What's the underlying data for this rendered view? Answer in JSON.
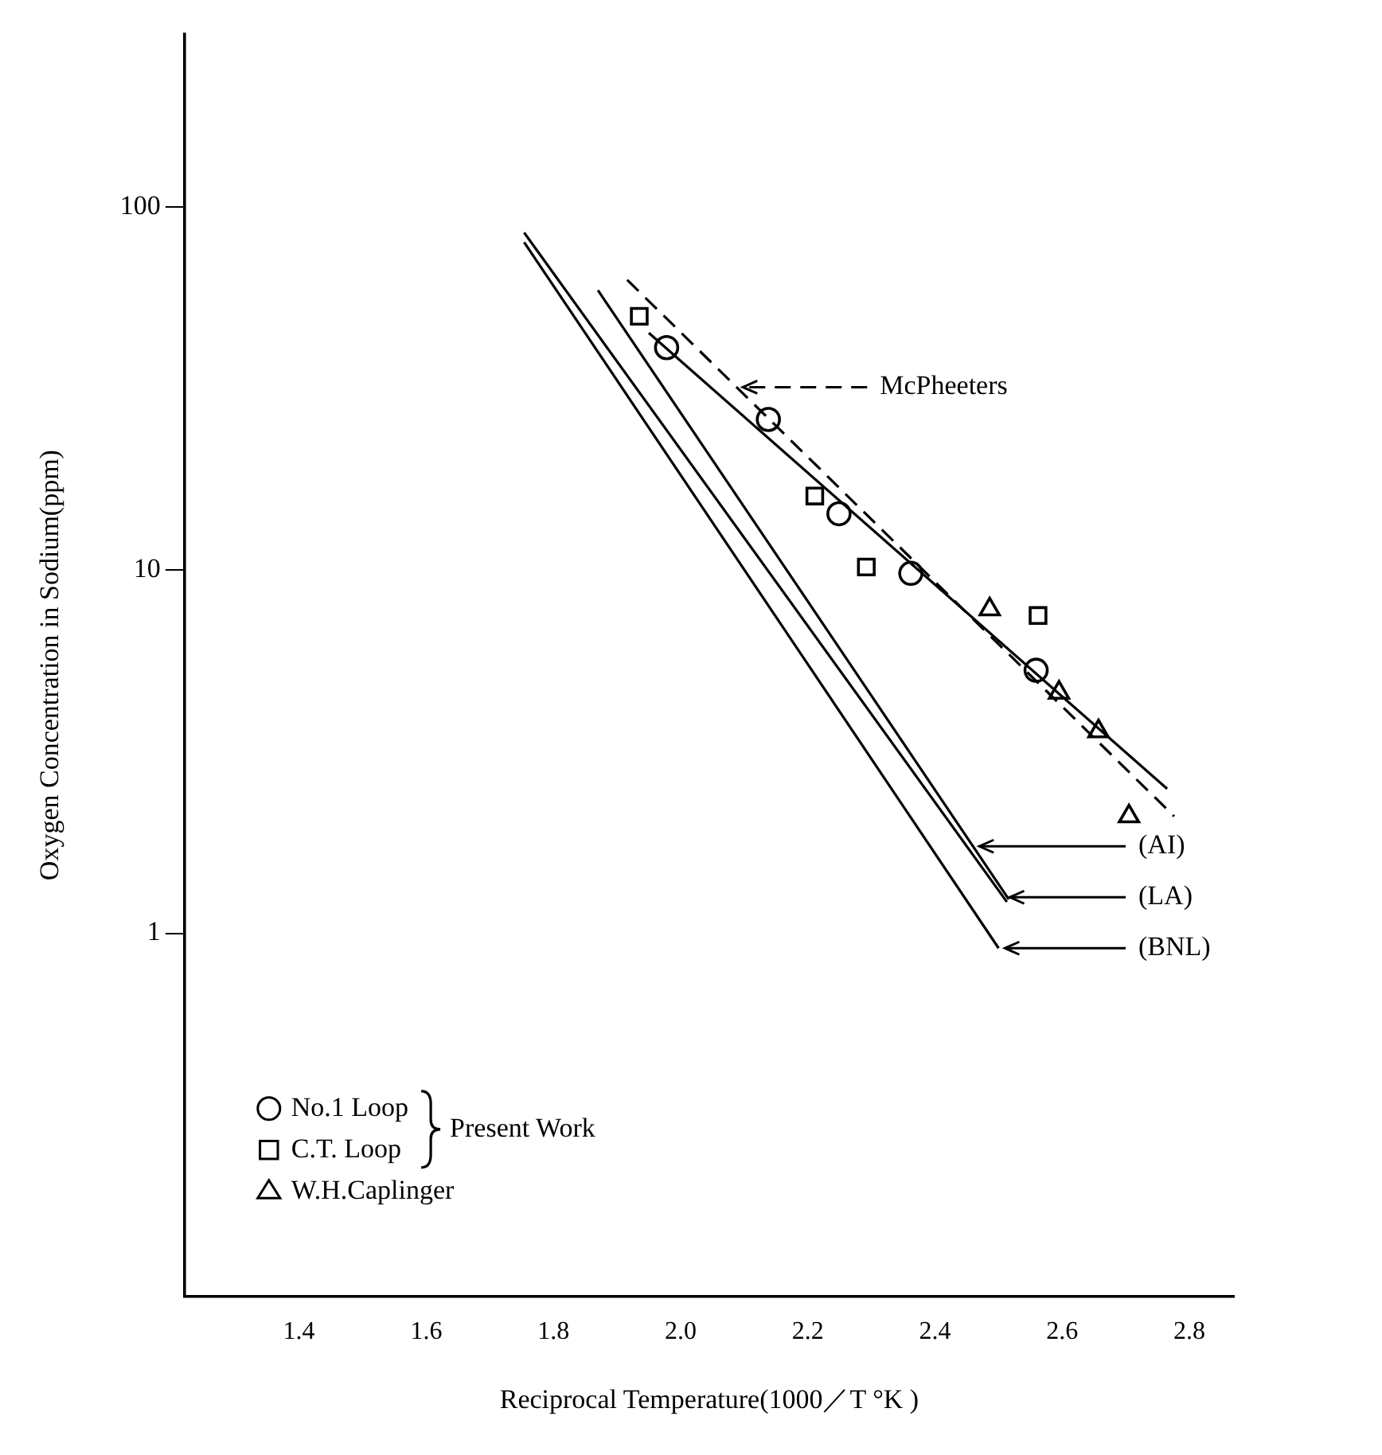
{
  "chart_data": {
    "type": "scatter",
    "xlabel": "Reciprocal Temperature(1000／T °K )",
    "ylabel": "Oxygen Concentration in Sodium(ppm)",
    "log": "y",
    "xlim": [
      1.22,
      2.87
    ],
    "xticks": [
      1.4,
      1.6,
      1.8,
      {
        "value": 2,
        "label": "2.0"
      },
      2.2,
      2.4,
      2.6,
      2.8
    ],
    "ylim": [
      0.1,
      300
    ],
    "yticks": [
      1,
      10,
      100
    ],
    "legend": "bottom left",
    "annotations": [
      "Present Work"
    ],
    "series": [
      {
        "name": "No.1 Loop",
        "marker": "circle",
        "color": "#000000",
        "x": [
          1.978,
          2.138,
          2.249,
          2.362,
          2.559
        ],
        "values": [
          41,
          26,
          14.3,
          9.8,
          5.3
        ]
      },
      {
        "name": "C.T. Loop",
        "marker": "square",
        "color": "#000000",
        "x": [
          1.935,
          2.211,
          2.292,
          2.562
        ],
        "values": [
          50,
          16,
          10.2,
          7.5
        ]
      },
      {
        "name": "W.H.Caplinger",
        "marker": "triangle",
        "color": "#000000",
        "x": [
          2.486,
          2.595,
          2.657,
          2.705
        ],
        "values": [
          7.8,
          4.6,
          3.6,
          2.1
        ]
      },
      {
        "type": "line",
        "marker": "none",
        "line_style": "solid",
        "color": "#000000",
        "x": [
          1.95,
          2.765
        ],
        "values": [
          45,
          2.5
        ]
      },
      {
        "name": "McPheeters",
        "type": "line",
        "marker": "none",
        "line_style": "dashed",
        "color": "#000000",
        "x": [
          1.916,
          2.776
        ],
        "values": [
          63,
          2.1
        ]
      },
      {
        "name": "(AI)",
        "type": "line",
        "marker": "none",
        "line_style": "solid",
        "color": "#000000",
        "x": [
          1.87,
          2.516
        ],
        "values": [
          59,
          1.24
        ]
      },
      {
        "name": "(LA)",
        "type": "line",
        "marker": "none",
        "line_style": "solid",
        "color": "#000000",
        "x": [
          1.754,
          2.513
        ],
        "values": [
          85,
          1.22
        ]
      },
      {
        "name": "(BNL)",
        "type": "line",
        "marker": "none",
        "line_style": "solid",
        "color": "#000000",
        "x": [
          1.754,
          2.5
        ],
        "values": [
          80,
          0.91
        ]
      }
    ]
  }
}
